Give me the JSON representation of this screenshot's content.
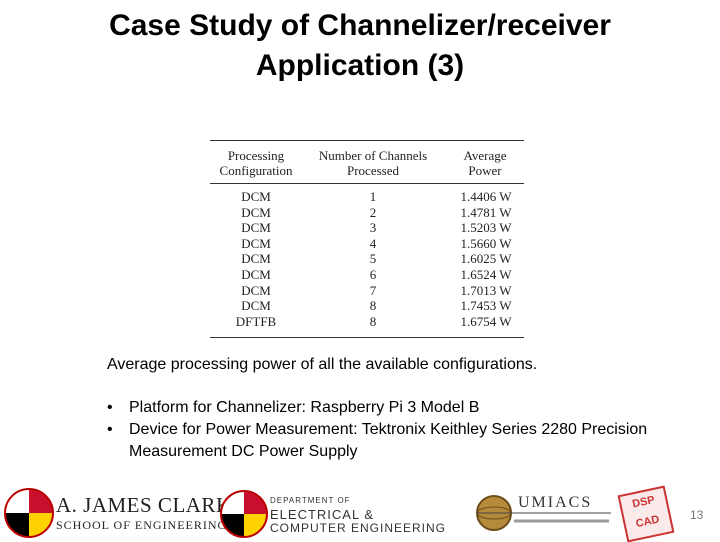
{
  "slide": {
    "title_line1": "Case Study of Channelizer/receiver",
    "title_line2": "Application (3)",
    "caption": "Average processing power of all the available configurations.",
    "bullets": [
      "Platform for Channelizer: Raspberry Pi 3 Model B",
      "Device for Power Measurement: Tektronix Keithley Series 2280 Precision Measurement DC Power Supply"
    ],
    "page_number": "13"
  },
  "table": {
    "headers": [
      "Processing Configuration",
      "Number of Channels Processed",
      "Average Power"
    ],
    "rows": [
      [
        "DCM",
        "1",
        "1.4406 W"
      ],
      [
        "DCM",
        "2",
        "1.4781 W"
      ],
      [
        "DCM",
        "3",
        "1.5203 W"
      ],
      [
        "DCM",
        "4",
        "1.5660 W"
      ],
      [
        "DCM",
        "5",
        "1.6025 W"
      ],
      [
        "DCM",
        "6",
        "1.6524 W"
      ],
      [
        "DCM",
        "7",
        "1.7013 W"
      ],
      [
        "DCM",
        "8",
        "1.7453 W"
      ],
      [
        "DFTFB",
        "8",
        "1.6754 W"
      ]
    ]
  },
  "logos": {
    "clark_name": "A. JAMES CLARK",
    "clark_school": "SCHOOL OF ENGINEERING",
    "ece_dept_line1": "DEPARTMENT OF",
    "ece_dept_line2": "ELECTRICAL &",
    "ece_dept_line3": "COMPUTER ENGINEERING",
    "umiacs": "UMIACS",
    "dspcad": "DSP CAD",
    "seal_color": "#c8102e",
    "gold_color": "#ffd200"
  }
}
